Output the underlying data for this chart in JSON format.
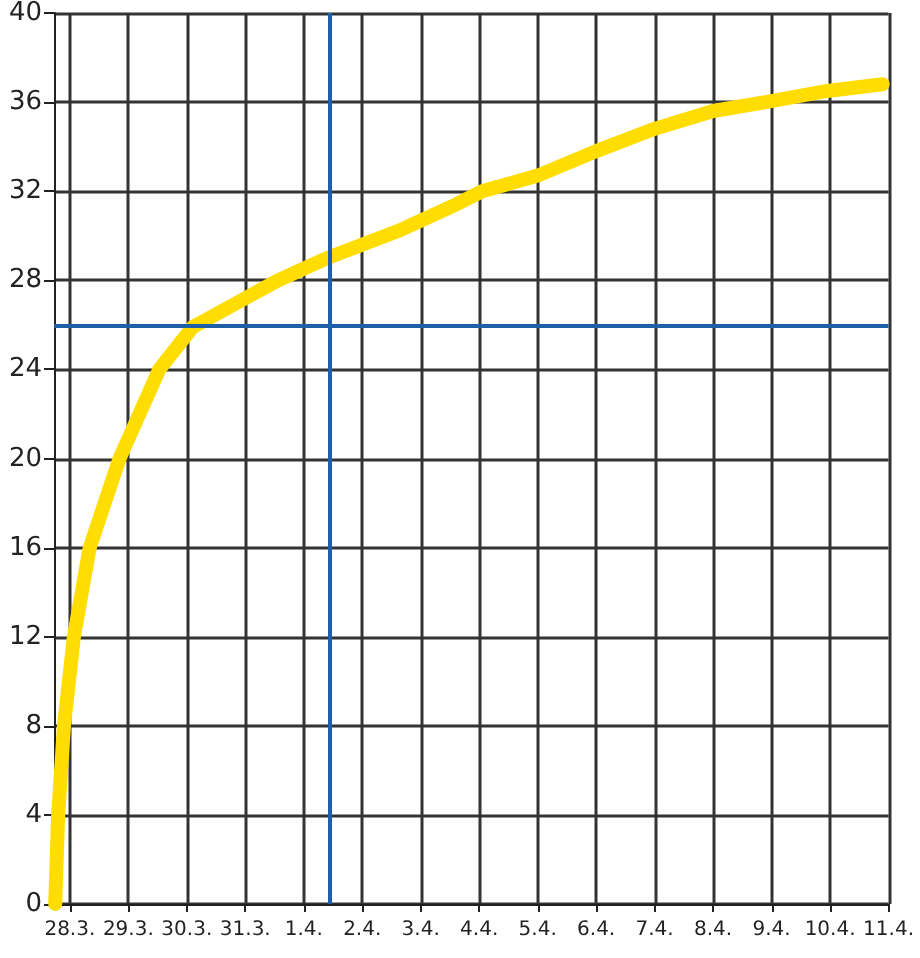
{
  "chart_data": {
    "type": "line",
    "x": [
      "--03-27T18:00",
      "--03-27T19:12",
      "--03-27T21:36",
      "--03-28T01:40",
      "--03-28T08:10",
      "--03-28T20:24",
      "--03-29T12:43",
      "--03-30T02:24",
      "--03-31T13:26",
      "--04-01T09:36",
      "--04-02T14:24",
      "--04-03T14:24",
      "--04-04T01:12",
      "--04-05",
      "--04-06",
      "--04-07",
      "--04-08",
      "--04-08T21:36",
      "--04-09T22:48",
      "--04-10T21:36"
    ],
    "series": [
      {
        "color": "#ffdd00",
        "values": [
          0,
          4,
          8,
          12,
          16,
          20,
          24,
          25.9,
          28,
          29,
          30.2,
          31.4,
          32,
          32.7,
          33.8,
          34.8,
          35.6,
          36,
          36.5,
          36.8
        ]
      }
    ],
    "xlim": [
      "--03-27T17:30",
      "--04-11"
    ],
    "xticks": [
      {
        "value": "--03-28",
        "label": "28.3."
      },
      {
        "value": "--03-29",
        "label": "29.3."
      },
      {
        "value": "--03-30",
        "label": "30.3."
      },
      {
        "value": "--03-31",
        "label": "31.3."
      },
      {
        "value": "--04-01",
        "label": "1.4."
      },
      {
        "value": "--04-02",
        "label": "2.4."
      },
      {
        "value": "--04-03",
        "label": "3.4."
      },
      {
        "value": "--04-04",
        "label": "4.4."
      },
      {
        "value": "--04-05",
        "label": "5.4."
      },
      {
        "value": "--04-06",
        "label": "6.4."
      },
      {
        "value": "--04-07",
        "label": "7.4."
      },
      {
        "value": "--04-08",
        "label": "8.4."
      },
      {
        "value": "--04-09",
        "label": "9.4."
      },
      {
        "value": "--04-10",
        "label": "10.4."
      },
      {
        "value": "--04-11",
        "label": "11.4."
      }
    ],
    "ylim": [
      0,
      40
    ],
    "yticks": [
      0,
      4,
      8,
      12,
      16,
      20,
      24,
      28,
      32,
      36,
      40
    ],
    "ref_lines": [
      {
        "axis": "y",
        "value": 26,
        "color": "#1f5fa8"
      },
      {
        "axis": "x",
        "value": "--04-01T10:20",
        "color": "#1f5fa8"
      }
    ],
    "grid": true,
    "marker": "none",
    "line_style": "solid"
  }
}
